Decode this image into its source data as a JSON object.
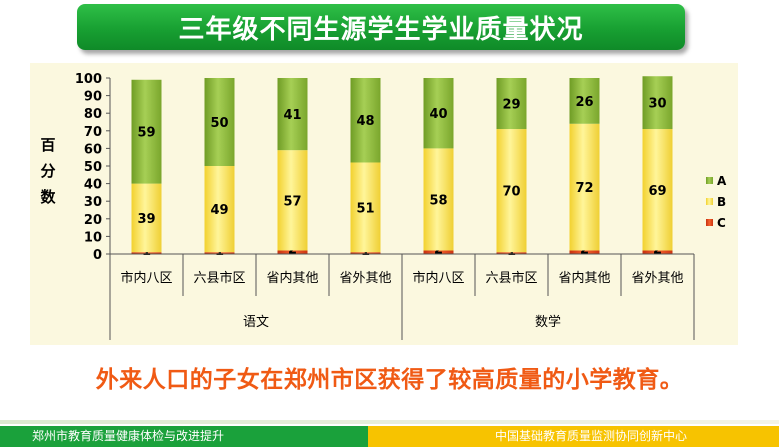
{
  "title": "三年级不同生源学生学业质量状况",
  "conclusion": "外来人口的子女在郑州市区获得了较高质量的小学教育。",
  "footer": {
    "left": "郑州市教育质量健康体检与改进提升",
    "right": "中国基础教育质量监测协同创新中心"
  },
  "colors": {
    "A": "#8db83a",
    "B": "#f6e45a",
    "C": "#e8421c",
    "banner": "#18a032",
    "conclusion": "#f05a14"
  },
  "chart_data": {
    "type": "bar",
    "stacked": true,
    "ylabel": "百分数",
    "ylim": [
      0,
      100
    ],
    "yticks": [
      0,
      10,
      20,
      30,
      40,
      50,
      60,
      70,
      80,
      90,
      100
    ],
    "grid": false,
    "legend_position": "right",
    "categories": [
      "市内八区",
      "六县市区",
      "省内其他",
      "省外其他",
      "市内八区",
      "六县市区",
      "省内其他",
      "省外其他"
    ],
    "groups": [
      {
        "label": "语文",
        "span": [
          0,
          3
        ]
      },
      {
        "label": "数学",
        "span": [
          4,
          7
        ]
      }
    ],
    "series": [
      {
        "name": "C",
        "values": [
          1,
          1,
          2,
          1,
          2,
          1,
          2,
          2
        ]
      },
      {
        "name": "B",
        "values": [
          39,
          49,
          57,
          51,
          58,
          70,
          72,
          69
        ]
      },
      {
        "name": "A",
        "values": [
          59,
          50,
          41,
          48,
          40,
          29,
          26,
          30
        ]
      }
    ]
  }
}
